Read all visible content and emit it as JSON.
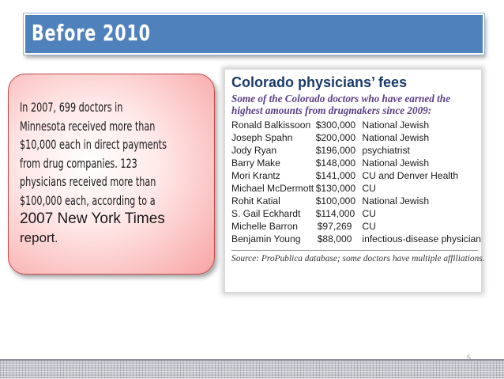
{
  "slide": {
    "title": "Before 2010",
    "page_number": "5",
    "colors": {
      "title_bar": "#4f81bd",
      "callout_fill": "#f8a4a4",
      "clip_title": "#1b3a6b",
      "clip_subtitle": "#5b3f86"
    }
  },
  "callout": {
    "lines": [
      "In 2007, 699 doctors in",
      "Minnesota received more than",
      "$10,000 each in direct payments",
      "from drug companies. 123",
      "physicians received more than",
      "$100,000 each, according to a"
    ],
    "tail_big": "2007 New York Times",
    "tail_end": "report",
    "tail_period": "."
  },
  "clipping": {
    "title": "Colorado physicians’ fees",
    "subtitle": "Some of the Colorado doctors who have earned the highest amounts from drugmakers since 2009:",
    "rows": [
      {
        "name": "Ronald Balkissoon",
        "amount": "$300,000",
        "affiliation": "National Jewish"
      },
      {
        "name": "Joseph Spahn",
        "amount": "$200,000",
        "affiliation": "National Jewish"
      },
      {
        "name": "Jody Ryan",
        "amount": "$196,000",
        "affiliation": "psychiatrist"
      },
      {
        "name": "Barry Make",
        "amount": "$148,000",
        "affiliation": "National Jewish"
      },
      {
        "name": "Mori Krantz",
        "amount": "$141,000",
        "affiliation": "CU and Denver Health"
      },
      {
        "name": "Michael McDermott",
        "amount": "$130,000",
        "affiliation": "CU"
      },
      {
        "name": "Rohit Katial",
        "amount": "$100,000",
        "affiliation": "National Jewish"
      },
      {
        "name": "S. Gail Eckhardt",
        "amount": "$114,000",
        "affiliation": "CU"
      },
      {
        "name": "Michelle Barron",
        "amount": "$97,269",
        "affiliation": "CU"
      },
      {
        "name": "Benjamin Young",
        "amount": "$88,000",
        "affiliation": "infectious-disease physician"
      }
    ],
    "source": "Source: ProPublica database; some doctors have multiple affiliations."
  }
}
